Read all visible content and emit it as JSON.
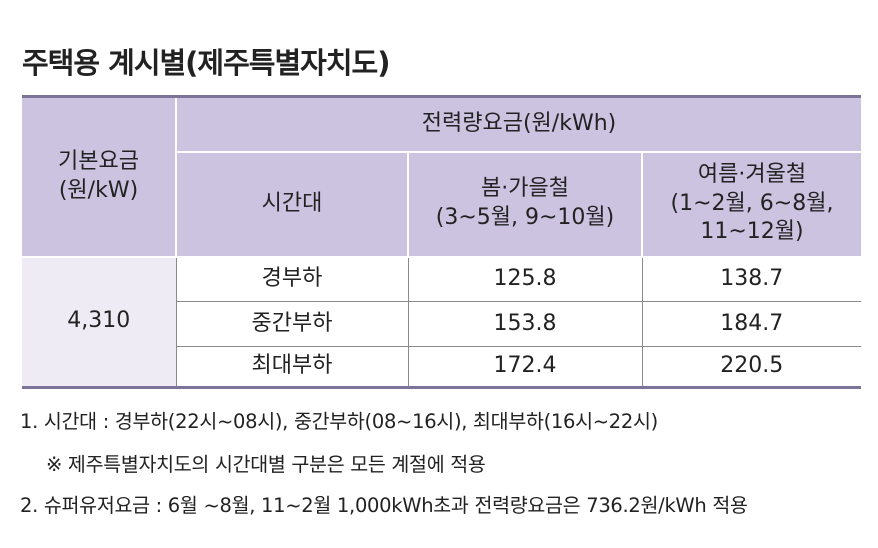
{
  "title": "주택용 계시별(제주특별자치도)",
  "table": {
    "base_fee_header": [
      "기본요금",
      "(원/kW)"
    ],
    "energy_header": "전력량요금(원/kWh)",
    "time_header": "시간대",
    "season_headers": [
      [
        "봄·가을철",
        "(3~5월, 9~10월)"
      ],
      [
        "여름·겨울철",
        "(1~2월, 6~8월,",
        "11~12월)"
      ]
    ],
    "base_fee": "4,310",
    "rows": [
      [
        "경부하",
        "125.8",
        "138.7"
      ],
      [
        "중간부하",
        "153.8",
        "184.7"
      ],
      [
        "최대부하",
        "172.4",
        "220.5"
      ]
    ]
  },
  "notes": [
    "1. 시간대 : 경부하(22시~08시), 중간부하(08~16시), 최대부하(16시~22시)",
    "※ 제주특별자치도의 시간대별 구분은 모든 계절에 적용",
    "2. 슈퍼유저요금 : 6월 ~8월, 11~2월 1,000kWh초과 전력량요금은 736.2원/kWh 적용"
  ]
}
